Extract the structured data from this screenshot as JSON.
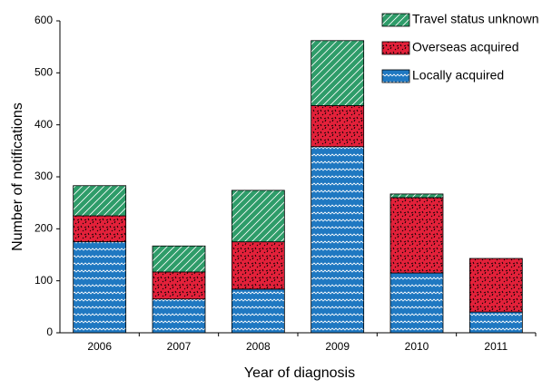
{
  "chart_data": {
    "type": "stacked_bar",
    "xlabel": "Year of diagnosis",
    "ylabel": "Number of notifications",
    "categories": [
      "2006",
      "2007",
      "2008",
      "2009",
      "2010",
      "2011"
    ],
    "series": [
      {
        "name": "Locally acquired",
        "color": "#1f78c1",
        "values": [
          175,
          65,
          84,
          358,
          115,
          40
        ]
      },
      {
        "name": "Overseas acquired",
        "color": "#e3213a",
        "values": [
          50,
          52,
          91,
          79,
          145,
          103
        ]
      },
      {
        "name": "Travel status unknown",
        "color": "#2e9c69",
        "values": [
          58,
          50,
          99,
          125,
          7,
          0
        ]
      }
    ],
    "ylim": [
      0,
      600
    ],
    "yticks": [
      0,
      100,
      200,
      300,
      400,
      500,
      600
    ],
    "grid": false
  }
}
